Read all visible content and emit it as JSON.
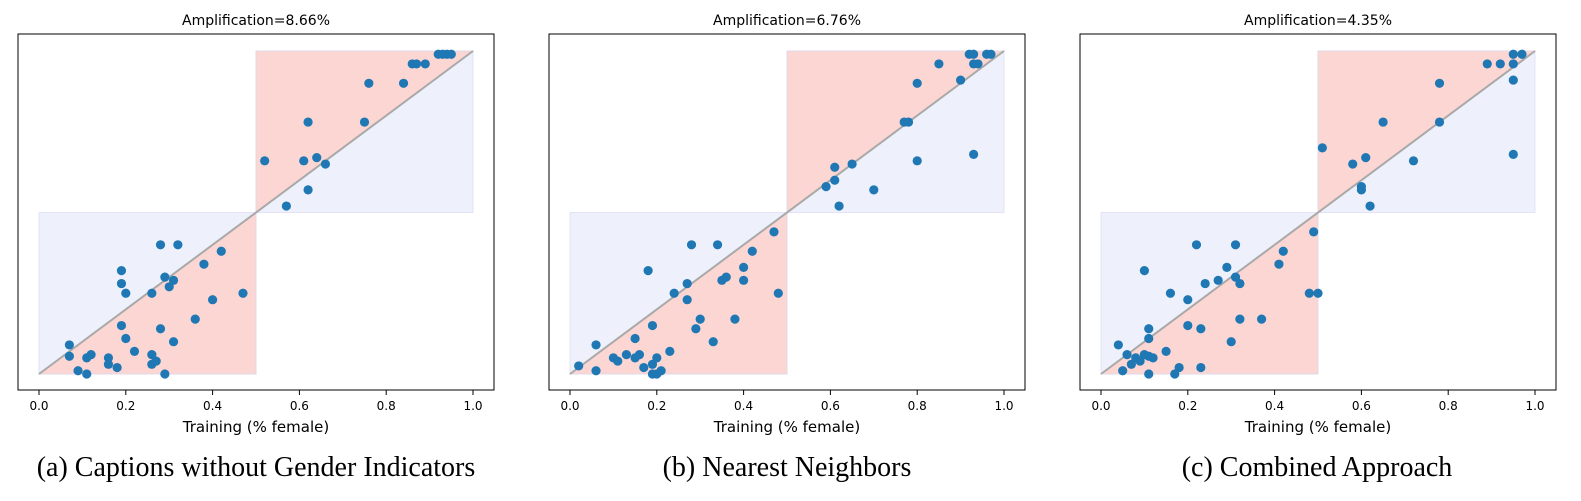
{
  "chart_data": [
    {
      "type": "scatter",
      "title": "Amplification=8.66%",
      "xlabel": "Training (% female)",
      "ylabel": "",
      "xlim": [
        0.0,
        1.0
      ],
      "ylim": [
        0.0,
        1.0
      ],
      "xticks": [
        "0.0",
        "0.2",
        "0.4",
        "0.6",
        "0.8",
        "1.0"
      ],
      "caption": "(a) Captions without Gender Indicators",
      "colors": {
        "points": "#1f77b4",
        "diagonal": "#a9a9a9",
        "amplified_region": "#fcd6d2",
        "reduced_region": "#eef0fb"
      },
      "points": [
        [
          0.07,
          0.09
        ],
        [
          0.07,
          0.055
        ],
        [
          0.09,
          0.01
        ],
        [
          0.11,
          0.0
        ],
        [
          0.11,
          0.05
        ],
        [
          0.12,
          0.06
        ],
        [
          0.16,
          0.03
        ],
        [
          0.16,
          0.05
        ],
        [
          0.18,
          0.02
        ],
        [
          0.19,
          0.15
        ],
        [
          0.19,
          0.28
        ],
        [
          0.19,
          0.32
        ],
        [
          0.2,
          0.25
        ],
        [
          0.2,
          0.11
        ],
        [
          0.22,
          0.07
        ],
        [
          0.26,
          0.03
        ],
        [
          0.26,
          0.06
        ],
        [
          0.27,
          0.04
        ],
        [
          0.26,
          0.25
        ],
        [
          0.28,
          0.4
        ],
        [
          0.28,
          0.14
        ],
        [
          0.29,
          0.0
        ],
        [
          0.29,
          0.3
        ],
        [
          0.3,
          0.27
        ],
        [
          0.31,
          0.29
        ],
        [
          0.31,
          0.1
        ],
        [
          0.32,
          0.4
        ],
        [
          0.36,
          0.17
        ],
        [
          0.38,
          0.34
        ],
        [
          0.4,
          0.23
        ],
        [
          0.42,
          0.38
        ],
        [
          0.47,
          0.25
        ],
        [
          0.52,
          0.66
        ],
        [
          0.57,
          0.52
        ],
        [
          0.61,
          0.66
        ],
        [
          0.62,
          0.57
        ],
        [
          0.62,
          0.78
        ],
        [
          0.64,
          0.67
        ],
        [
          0.66,
          0.65
        ],
        [
          0.75,
          0.78
        ],
        [
          0.76,
          0.9
        ],
        [
          0.84,
          0.9
        ],
        [
          0.86,
          0.96
        ],
        [
          0.87,
          0.96
        ],
        [
          0.89,
          0.96
        ],
        [
          0.92,
          0.99
        ],
        [
          0.93,
          0.99
        ],
        [
          0.94,
          0.99
        ],
        [
          0.95,
          0.99
        ]
      ]
    },
    {
      "type": "scatter",
      "title": "Amplification=6.76%",
      "xlabel": "Training (% female)",
      "ylabel": "",
      "xlim": [
        0.0,
        1.0
      ],
      "ylim": [
        0.0,
        1.0
      ],
      "xticks": [
        "0.0",
        "0.2",
        "0.4",
        "0.6",
        "0.8",
        "1.0"
      ],
      "caption": "(b) Nearest Neighbors",
      "colors": {
        "points": "#1f77b4",
        "diagonal": "#a9a9a9",
        "amplified_region": "#fcd6d2",
        "reduced_region": "#eef0fb"
      },
      "points": [
        [
          0.02,
          0.025
        ],
        [
          0.06,
          0.09
        ],
        [
          0.06,
          0.01
        ],
        [
          0.1,
          0.05
        ],
        [
          0.11,
          0.04
        ],
        [
          0.13,
          0.06
        ],
        [
          0.15,
          0.05
        ],
        [
          0.15,
          0.11
        ],
        [
          0.16,
          0.06
        ],
        [
          0.17,
          0.02
        ],
        [
          0.18,
          0.32
        ],
        [
          0.19,
          0.15
        ],
        [
          0.19,
          0.0
        ],
        [
          0.19,
          0.03
        ],
        [
          0.2,
          0.0
        ],
        [
          0.2,
          0.05
        ],
        [
          0.21,
          0.01
        ],
        [
          0.23,
          0.07
        ],
        [
          0.24,
          0.25
        ],
        [
          0.27,
          0.28
        ],
        [
          0.27,
          0.23
        ],
        [
          0.28,
          0.4
        ],
        [
          0.29,
          0.14
        ],
        [
          0.3,
          0.17
        ],
        [
          0.33,
          0.1
        ],
        [
          0.34,
          0.4
        ],
        [
          0.35,
          0.29
        ],
        [
          0.36,
          0.3
        ],
        [
          0.38,
          0.17
        ],
        [
          0.4,
          0.29
        ],
        [
          0.4,
          0.33
        ],
        [
          0.42,
          0.38
        ],
        [
          0.47,
          0.44
        ],
        [
          0.48,
          0.25
        ],
        [
          0.59,
          0.58
        ],
        [
          0.61,
          0.6
        ],
        [
          0.61,
          0.64
        ],
        [
          0.62,
          0.52
        ],
        [
          0.65,
          0.65
        ],
        [
          0.7,
          0.57
        ],
        [
          0.77,
          0.78
        ],
        [
          0.78,
          0.78
        ],
        [
          0.8,
          0.9
        ],
        [
          0.8,
          0.66
        ],
        [
          0.85,
          0.96
        ],
        [
          0.9,
          0.91
        ],
        [
          0.92,
          0.99
        ],
        [
          0.93,
          0.99
        ],
        [
          0.93,
          0.96
        ],
        [
          0.93,
          0.68
        ],
        [
          0.94,
          0.96
        ],
        [
          0.96,
          0.99
        ],
        [
          0.97,
          0.99
        ]
      ]
    },
    {
      "type": "scatter",
      "title": "Amplification=4.35%",
      "xlabel": "Training (% female)",
      "ylabel": "",
      "xlim": [
        0.0,
        1.0
      ],
      "ylim": [
        0.0,
        1.0
      ],
      "xticks": [
        "0.0",
        "0.2",
        "0.4",
        "0.6",
        "0.8",
        "1.0"
      ],
      "caption": "(c) Combined Approach",
      "colors": {
        "points": "#1f77b4",
        "diagonal": "#a9a9a9",
        "amplified_region": "#fcd6d2",
        "reduced_region": "#eef0fb"
      },
      "points": [
        [
          0.04,
          0.09
        ],
        [
          0.05,
          0.01
        ],
        [
          0.06,
          0.06
        ],
        [
          0.07,
          0.03
        ],
        [
          0.08,
          0.05
        ],
        [
          0.09,
          0.04
        ],
        [
          0.1,
          0.32
        ],
        [
          0.1,
          0.06
        ],
        [
          0.11,
          0.055
        ],
        [
          0.11,
          0.14
        ],
        [
          0.11,
          0.0
        ],
        [
          0.11,
          0.11
        ],
        [
          0.12,
          0.05
        ],
        [
          0.15,
          0.07
        ],
        [
          0.16,
          0.25
        ],
        [
          0.17,
          0.0
        ],
        [
          0.18,
          0.02
        ],
        [
          0.2,
          0.15
        ],
        [
          0.2,
          0.23
        ],
        [
          0.22,
          0.4
        ],
        [
          0.23,
          0.02
        ],
        [
          0.23,
          0.14
        ],
        [
          0.24,
          0.28
        ],
        [
          0.27,
          0.29
        ],
        [
          0.29,
          0.33
        ],
        [
          0.3,
          0.1
        ],
        [
          0.31,
          0.4
        ],
        [
          0.31,
          0.3
        ],
        [
          0.32,
          0.28
        ],
        [
          0.32,
          0.17
        ],
        [
          0.37,
          0.17
        ],
        [
          0.41,
          0.34
        ],
        [
          0.42,
          0.38
        ],
        [
          0.48,
          0.25
        ],
        [
          0.49,
          0.44
        ],
        [
          0.5,
          0.25
        ],
        [
          0.51,
          0.7
        ],
        [
          0.58,
          0.65
        ],
        [
          0.6,
          0.58
        ],
        [
          0.6,
          0.57
        ],
        [
          0.61,
          0.67
        ],
        [
          0.62,
          0.52
        ],
        [
          0.65,
          0.78
        ],
        [
          0.72,
          0.66
        ],
        [
          0.78,
          0.9
        ],
        [
          0.78,
          0.78
        ],
        [
          0.89,
          0.96
        ],
        [
          0.92,
          0.96
        ],
        [
          0.95,
          0.96
        ],
        [
          0.95,
          0.99
        ],
        [
          0.95,
          0.91
        ],
        [
          0.95,
          0.68
        ],
        [
          0.97,
          0.99
        ]
      ]
    }
  ]
}
